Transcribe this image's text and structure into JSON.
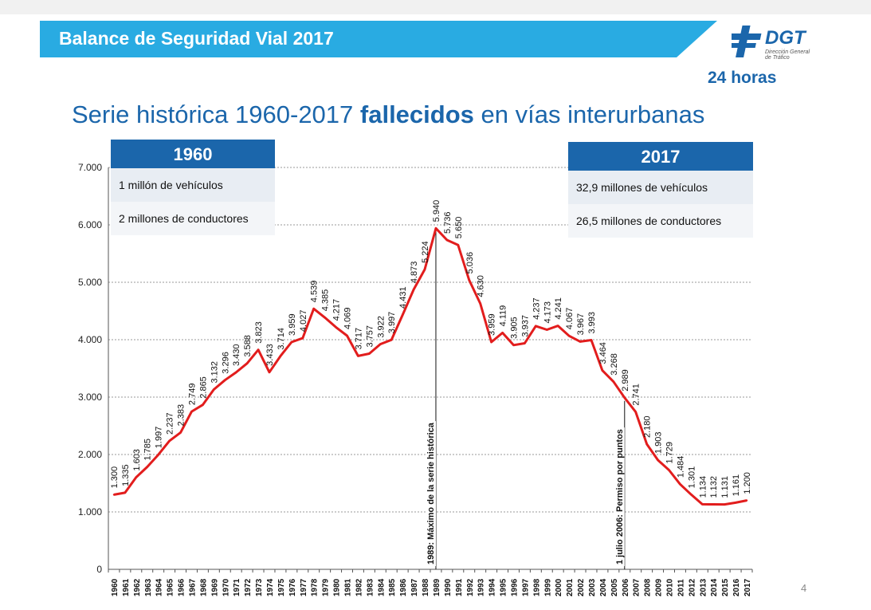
{
  "header": {
    "title": "Balance de Seguridad Vial 2017",
    "logo_text": "DGT",
    "logo_sub1": "Dirección General",
    "logo_sub2": "de Tráfico",
    "hours": "24 horas"
  },
  "slide_title": {
    "part1": "Serie histórica 1960-2017 ",
    "bold": "fallecidos",
    "part2": " en vías interurbanas"
  },
  "box_1960": {
    "year": "1960",
    "row1": "1 millón de vehículos",
    "row2": "2 millones de conductores"
  },
  "box_2017": {
    "year": "2017",
    "row1": "32,9 millones de vehículos",
    "row2": "26,5 millones de conductores"
  },
  "page_number": "4",
  "colors": {
    "banner": "#29abe2",
    "title_blue": "#1b66ab",
    "line": "#e21d1d"
  },
  "chart_data": {
    "type": "line",
    "title": "",
    "xlabel": "",
    "ylabel": "",
    "ylim": [
      0,
      7000
    ],
    "yticks": [
      0,
      1000,
      2000,
      3000,
      4000,
      5000,
      6000,
      7000
    ],
    "ytick_labels": [
      "0",
      "1.000",
      "2.000",
      "3.000",
      "4.000",
      "5.000",
      "6.000",
      "7.000"
    ],
    "grid": true,
    "x": [
      "1960",
      "1961",
      "1962",
      "1963",
      "1964",
      "1965",
      "1966",
      "1967",
      "1968",
      "1969",
      "1970",
      "1971",
      "1972",
      "1973",
      "1974",
      "1975",
      "1976",
      "1977",
      "1978",
      "1979",
      "1980",
      "1981",
      "1982",
      "1983",
      "1984",
      "1985",
      "1986",
      "1987",
      "1988",
      "1989",
      "1990",
      "1991",
      "1992",
      "1993",
      "1994",
      "1995",
      "1996",
      "1997",
      "1998",
      "1999",
      "2000",
      "2001",
      "2002",
      "2003",
      "2004",
      "2005",
      "2006",
      "2007",
      "2008",
      "2009",
      "2010",
      "2011",
      "2012",
      "2013",
      "2014",
      "2015",
      "2016",
      "2017"
    ],
    "values": [
      1300,
      1335,
      1603,
      1785,
      1997,
      2237,
      2383,
      2749,
      2865,
      3132,
      3296,
      3430,
      3588,
      3823,
      3433,
      3714,
      3959,
      4027,
      4539,
      4385,
      4217,
      4069,
      3717,
      3757,
      3922,
      3997,
      4431,
      4873,
      5224,
      5940,
      5736,
      5650,
      5036,
      4630,
      3959,
      4119,
      3905,
      3937,
      4237,
      4173,
      4241,
      4067,
      3967,
      3993,
      3464,
      3268,
      2989,
      2741,
      2180,
      1903,
      1729,
      1484,
      1301,
      1134,
      1132,
      1131,
      1161,
      1200
    ],
    "data_labels": [
      "1.300",
      "1.335",
      "1.603",
      "1.785",
      "1.997",
      "2.237",
      "2.383",
      "2.749",
      "2.865",
      "3.132",
      "3.296",
      "3.430",
      "3.588",
      "3.823",
      "3.433",
      "3.714",
      "3.959",
      "4.027",
      "4.539",
      "4.385",
      "4.217",
      "4.069",
      "3.717",
      "3.757",
      "3.922",
      "3.997",
      "4.431",
      "4.873",
      "5.224",
      "5.940",
      "5.736",
      "5.650",
      "5.036",
      "4.630",
      "3.959",
      "4.119",
      "3.905",
      "3.937",
      "4.237",
      "4.173",
      "4.241",
      "4.067",
      "3.967",
      "3.993",
      "3.464",
      "3.268",
      "2.989",
      "2.741",
      "2.180",
      "1.903",
      "1.729",
      "1.484",
      "1.301",
      "1.134",
      "1.132",
      "1.131",
      "1.161",
      "1.200"
    ],
    "annotations": [
      {
        "x": "1989",
        "text": "1989: Máximo de  la serie histórica"
      },
      {
        "x": "2006",
        "text": "1 julio 2006: Permiso por puntos"
      }
    ]
  }
}
